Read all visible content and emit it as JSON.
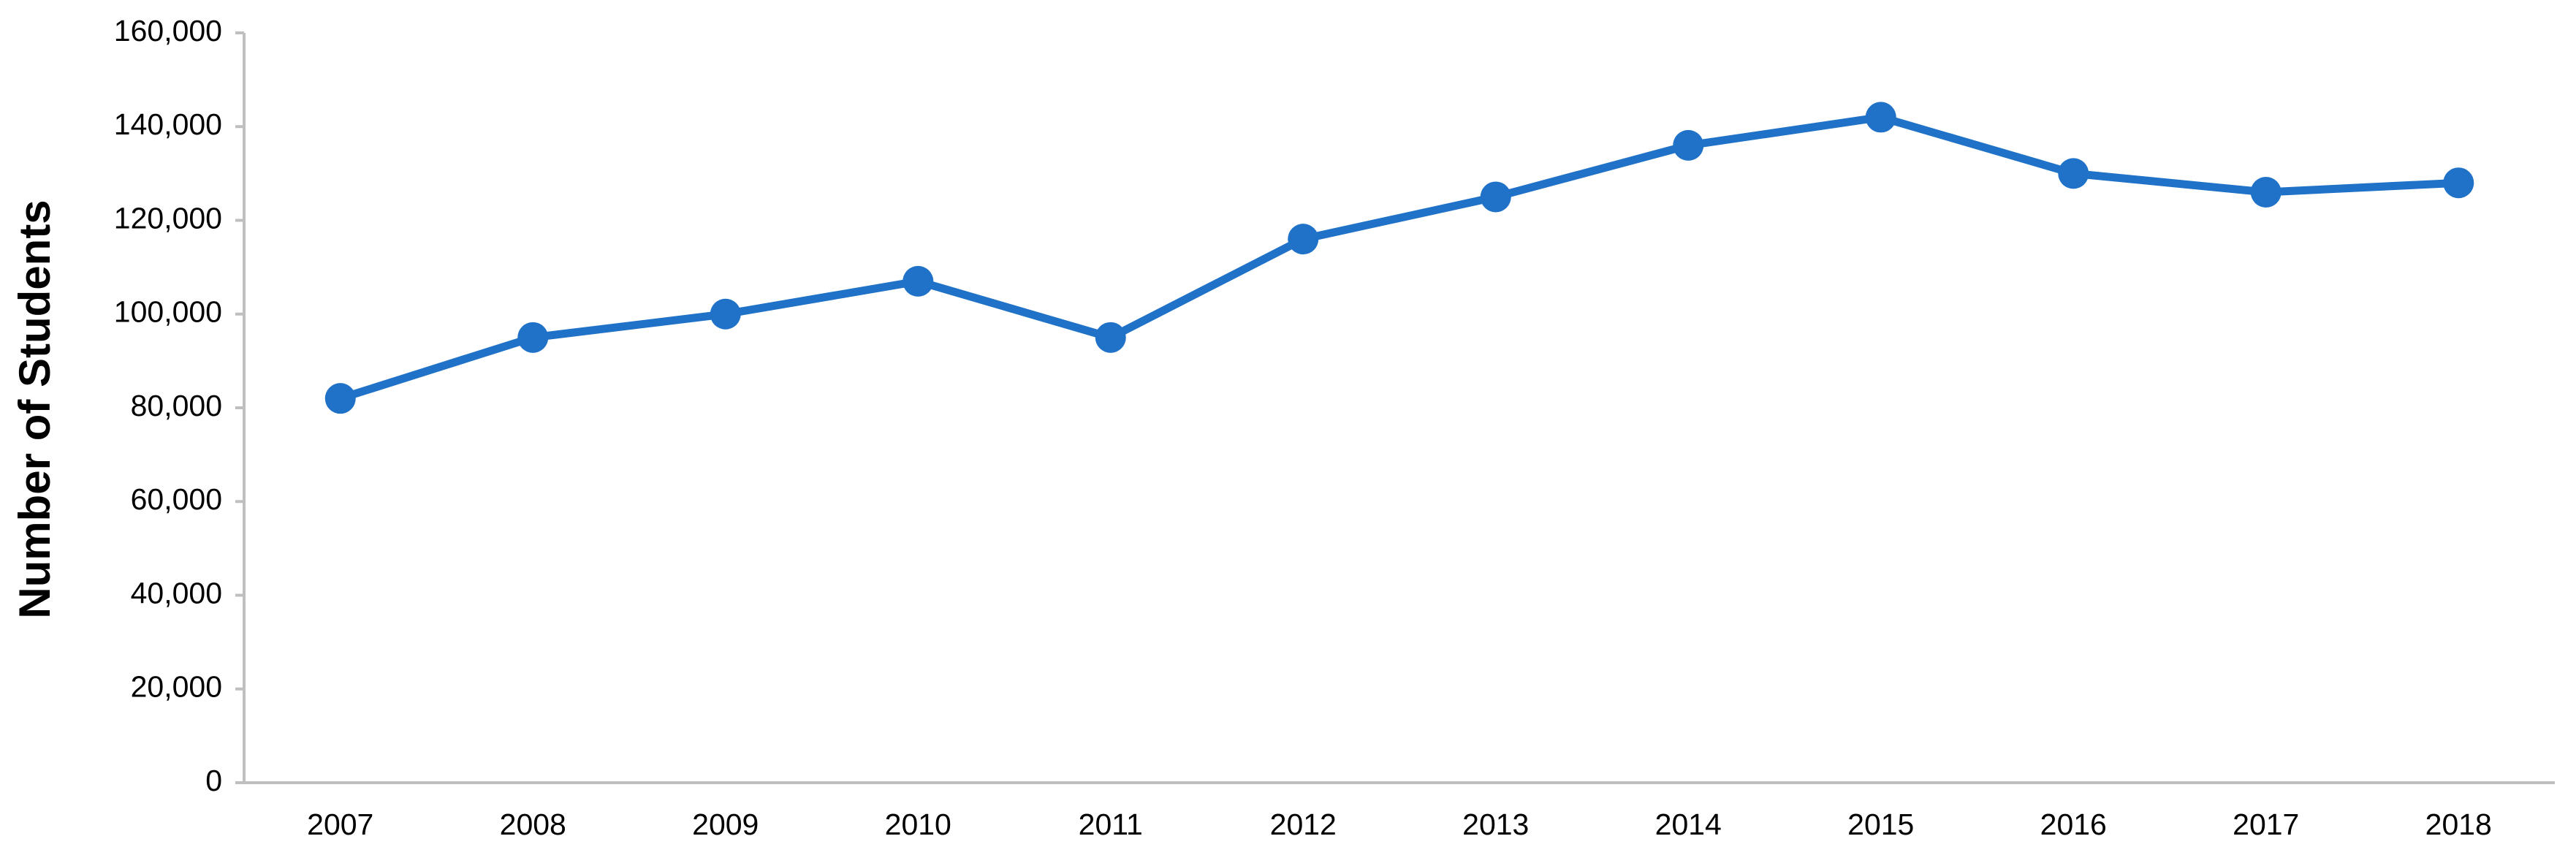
{
  "chart_data": {
    "type": "line",
    "y_label": "Number of Students",
    "categories": [
      "2007",
      "2008",
      "2009",
      "2010",
      "2011",
      "2012",
      "2013",
      "2014",
      "2015",
      "2016",
      "2017",
      "2018"
    ],
    "series": [
      {
        "name": "Number of Students",
        "color": "#1f72c8",
        "values": [
          82000,
          95000,
          100000,
          107000,
          95000,
          116000,
          125000,
          136000,
          142000,
          130000,
          126000,
          128000
        ]
      }
    ],
    "ylim": [
      0,
      160000
    ],
    "yticks": [
      0,
      {
        "value": 20000,
        "label": "20,000"
      },
      {
        "value": 40000,
        "label": "40,000"
      },
      {
        "value": 60000,
        "label": "60,000"
      },
      {
        "value": 80000,
        "label": "80,000"
      },
      {
        "value": 100000,
        "label": "100,000"
      },
      {
        "value": 120000,
        "label": "120,000"
      },
      {
        "value": 140000,
        "label": "140,000"
      },
      {
        "value": 160000,
        "label": "160,000"
      }
    ],
    "grid": false,
    "legend": false
  }
}
